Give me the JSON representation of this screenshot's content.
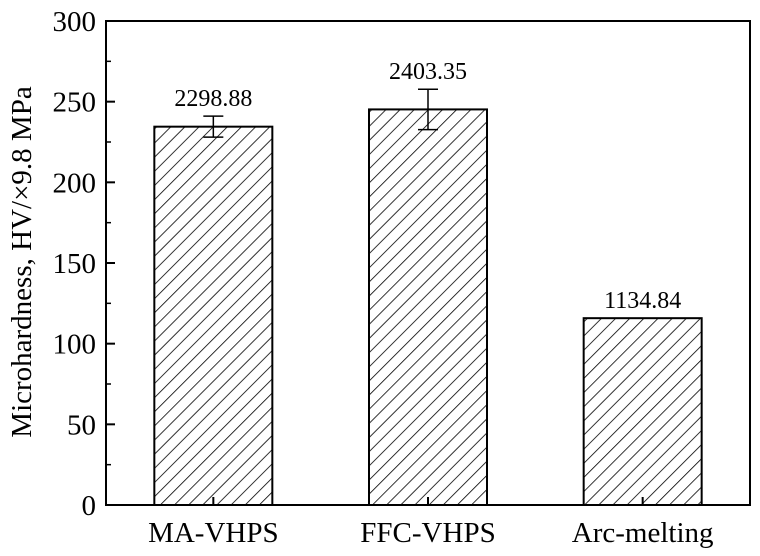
{
  "chart_data": {
    "type": "bar",
    "title": "",
    "xlabel": "",
    "ylabel": "Microhardness, HV/×9.8 MPa",
    "ylim": [
      0,
      300
    ],
    "yticks": [
      "0",
      "50",
      "100",
      "150",
      "200",
      "250",
      "300"
    ],
    "grid": false,
    "bar_fill": "diagonal hatch",
    "colors": {
      "stroke": "#000000",
      "background": "#ffffff"
    },
    "categories": [
      "MA-VHPS",
      "FFC-VHPS",
      "Arc-melting"
    ],
    "values": [
      234.5,
      245.2,
      115.8
    ],
    "errors": [
      6.5,
      12.5,
      null
    ],
    "data_labels": [
      "2298.88",
      "2403.35",
      "1134.84"
    ]
  }
}
